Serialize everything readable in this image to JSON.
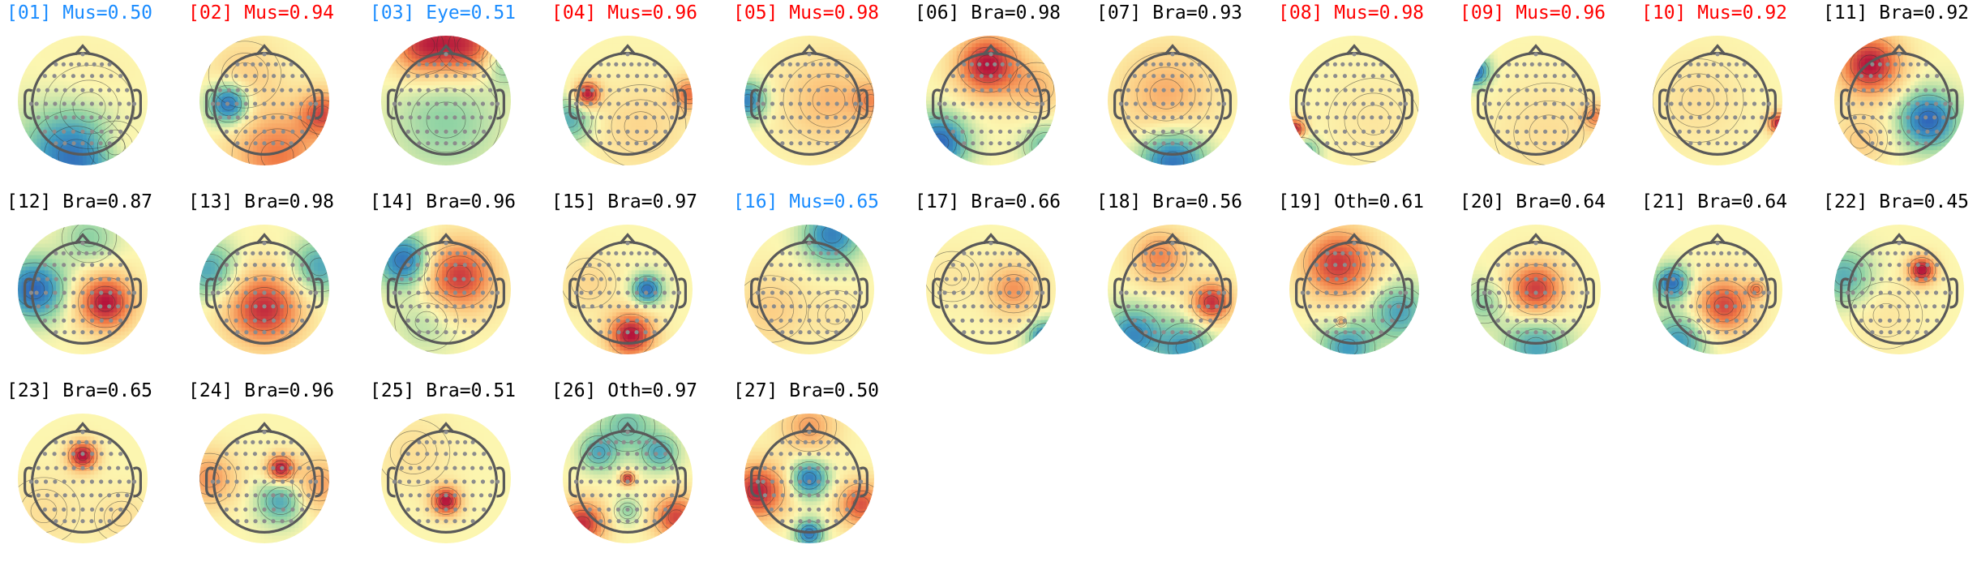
{
  "colors": {
    "Mus": "#ff0000",
    "Eye": "#1a8cff",
    "Bra": "#000000",
    "Oth": "#000000",
    "Mus_low": "#1a8cff",
    "map_red": "#c2143a",
    "map_orange": "#f4874a",
    "map_yellow": "#fcefa6",
    "map_green": "#9ed3a4",
    "map_blue": "#3a6fc2",
    "head_outline": "#555555",
    "sensor": "#8c8c8c"
  },
  "colormap": "spectral (red = positive, blue = negative)",
  "components": [
    {
      "label": "[01] Mus=0.50",
      "cls": "Mus",
      "score": 0.5,
      "title_color": "#1a8cff",
      "blobs": [
        [
          -0.1,
          0.85,
          0.55,
          -0.9
        ],
        [
          0.1,
          0.1,
          0.5,
          0.15
        ],
        [
          0.5,
          0.7,
          0.3,
          0.3
        ]
      ]
    },
    {
      "label": "[02] Mus=0.94",
      "cls": "Mus",
      "score": 0.94,
      "title_color": "#ff0000",
      "blobs": [
        [
          -0.55,
          0.05,
          0.22,
          -0.95
        ],
        [
          0.9,
          0.2,
          0.25,
          0.7
        ],
        [
          0.2,
          0.85,
          0.5,
          0.6
        ],
        [
          -0.3,
          -0.4,
          0.4,
          0.25
        ]
      ]
    },
    {
      "label": "[03] Eye=0.51",
      "cls": "Eye",
      "score": 0.51,
      "title_color": "#1a8cff",
      "blobs": [
        [
          -0.35,
          -0.85,
          0.35,
          0.85
        ],
        [
          0.35,
          -0.85,
          0.35,
          0.8
        ],
        [
          0.9,
          -0.6,
          0.25,
          -0.4
        ],
        [
          0,
          0.3,
          0.6,
          -0.3
        ]
      ]
    },
    {
      "label": "[04] Mus=0.96",
      "cls": "Mus",
      "score": 0.96,
      "title_color": "#ff0000",
      "blobs": [
        [
          -0.62,
          -0.1,
          0.14,
          1.0
        ],
        [
          0.95,
          -0.1,
          0.18,
          0.6
        ],
        [
          -0.9,
          0.3,
          0.25,
          -0.5
        ],
        [
          0.2,
          0.4,
          0.5,
          0.2
        ]
      ]
    },
    {
      "label": "[05] Mus=0.98",
      "cls": "Mus",
      "score": 0.98,
      "title_color": "#ff0000",
      "blobs": [
        [
          -0.95,
          0,
          0.2,
          -0.75
        ],
        [
          0.3,
          0,
          0.5,
          0.35
        ],
        [
          0.95,
          0,
          0.2,
          0.4
        ]
      ]
    },
    {
      "label": "[06] Bra=0.98",
      "cls": "Bra",
      "score": 0.98,
      "title_color": "#000000",
      "blobs": [
        [
          -0.05,
          -0.55,
          0.33,
          1.0
        ],
        [
          -0.8,
          0.65,
          0.3,
          -0.9
        ],
        [
          0.85,
          0.7,
          0.25,
          -0.4
        ],
        [
          0.7,
          -0.2,
          0.3,
          0.35
        ]
      ]
    },
    {
      "label": "[07] Bra=0.93",
      "cls": "Bra",
      "score": 0.93,
      "title_color": "#000000",
      "blobs": [
        [
          0,
          0.95,
          0.35,
          -0.85
        ],
        [
          -0.1,
          -0.1,
          0.5,
          0.4
        ]
      ]
    },
    {
      "label": "[08] Mus=0.98",
      "cls": "Mus",
      "score": 0.98,
      "title_color": "#ff0000",
      "blobs": [
        [
          -0.92,
          0.45,
          0.12,
          1.0
        ],
        [
          -0.8,
          0.8,
          0.18,
          -0.5
        ],
        [
          0.3,
          0.3,
          0.5,
          0.1
        ]
      ]
    },
    {
      "label": "[09] Mus=0.96",
      "cls": "Mus",
      "score": 0.96,
      "title_color": "#ff0000",
      "blobs": [
        [
          -0.95,
          -0.45,
          0.16,
          -0.9
        ],
        [
          0.92,
          0.25,
          0.14,
          0.5
        ],
        [
          0.2,
          0.5,
          0.6,
          0.15
        ]
      ]
    },
    {
      "label": "[10] Mus=0.92",
      "cls": "Mus",
      "score": 0.92,
      "title_color": "#ff0000",
      "blobs": [
        [
          0.95,
          0.35,
          0.12,
          0.95
        ],
        [
          -0.3,
          0,
          0.5,
          0.15
        ]
      ]
    },
    {
      "label": "[11] Bra=0.92",
      "cls": "Bra",
      "score": 0.92,
      "title_color": "#000000",
      "blobs": [
        [
          -0.45,
          -0.55,
          0.33,
          1.0
        ],
        [
          0.45,
          0.3,
          0.3,
          -0.9
        ],
        [
          -0.6,
          0.6,
          0.3,
          0.25
        ]
      ]
    },
    {
      "label": "[12] Bra=0.87",
      "cls": "Bra",
      "score": 0.87,
      "title_color": "#000000",
      "blobs": [
        [
          0.35,
          0.2,
          0.3,
          1.0
        ],
        [
          -0.75,
          0,
          0.32,
          -0.9
        ],
        [
          0.1,
          -0.8,
          0.3,
          -0.3
        ]
      ]
    },
    {
      "label": "[13] Bra=0.98",
      "cls": "Bra",
      "score": 0.98,
      "title_color": "#000000",
      "blobs": [
        [
          0,
          0.3,
          0.4,
          0.9
        ],
        [
          -0.85,
          -0.3,
          0.3,
          -0.55
        ],
        [
          0.85,
          -0.35,
          0.3,
          -0.55
        ]
      ]
    },
    {
      "label": "[14] Bra=0.96",
      "cls": "Bra",
      "score": 0.96,
      "title_color": "#000000",
      "blobs": [
        [
          0.2,
          -0.2,
          0.38,
          0.85
        ],
        [
          -0.65,
          -0.45,
          0.28,
          -0.85
        ],
        [
          -0.3,
          0.5,
          0.35,
          -0.2
        ]
      ]
    },
    {
      "label": "[15] Bra=0.97",
      "cls": "Bra",
      "score": 0.97,
      "title_color": "#000000",
      "blobs": [
        [
          0.05,
          0.7,
          0.25,
          1.0
        ],
        [
          0.3,
          0.0,
          0.16,
          -0.85
        ],
        [
          -0.6,
          -0.1,
          0.3,
          0.2
        ]
      ]
    },
    {
      "label": "[16] Mus=0.65",
      "cls": "Mus",
      "score": 0.65,
      "title_color": "#1a8cff",
      "blobs": [
        [
          0.35,
          -0.85,
          0.3,
          -0.75
        ],
        [
          -0.6,
          0.3,
          0.4,
          0.25
        ],
        [
          0.4,
          0.4,
          0.3,
          0.1
        ]
      ]
    },
    {
      "label": "[17] Bra=0.66",
      "cls": "Bra",
      "score": 0.66,
      "title_color": "#000000",
      "blobs": [
        [
          0.35,
          0.0,
          0.28,
          0.5
        ],
        [
          0.85,
          0.75,
          0.18,
          -0.85
        ],
        [
          -0.6,
          -0.2,
          0.3,
          0.1
        ]
      ]
    },
    {
      "label": "[18] Bra=0.56",
      "cls": "Bra",
      "score": 0.56,
      "title_color": "#000000",
      "blobs": [
        [
          0.6,
          0.2,
          0.22,
          0.9
        ],
        [
          -0.2,
          -0.5,
          0.3,
          0.55
        ],
        [
          -0.6,
          0.7,
          0.3,
          -0.7
        ],
        [
          0.2,
          0.9,
          0.3,
          -0.6
        ]
      ]
    },
    {
      "label": "[19] Oth=0.61",
      "cls": "Oth",
      "score": 0.61,
      "title_color": "#000000",
      "blobs": [
        [
          -0.25,
          -0.4,
          0.38,
          0.85
        ],
        [
          0.7,
          0.35,
          0.3,
          -0.55
        ],
        [
          -0.1,
          0.9,
          0.3,
          -0.6
        ],
        [
          -0.2,
          0.5,
          0.06,
          0.55
        ]
      ]
    },
    {
      "label": "[20] Bra=0.64",
      "cls": "Bra",
      "score": 0.64,
      "title_color": "#000000",
      "blobs": [
        [
          0,
          0,
          0.3,
          0.85
        ],
        [
          0,
          0.9,
          0.35,
          -0.55
        ],
        [
          -0.8,
          0.2,
          0.25,
          -0.3
        ]
      ]
    },
    {
      "label": "[21] Bra=0.64",
      "cls": "Bra",
      "score": 0.64,
      "title_color": "#000000",
      "blobs": [
        [
          0.1,
          0.25,
          0.3,
          0.8
        ],
        [
          -0.7,
          -0.1,
          0.18,
          -0.85
        ],
        [
          0.6,
          0.0,
          0.1,
          0.5
        ],
        [
          -0.6,
          0.8,
          0.3,
          -0.6
        ]
      ]
    },
    {
      "label": "[22] Bra=0.45",
      "cls": "Bra",
      "score": 0.45,
      "title_color": "#000000",
      "blobs": [
        [
          0.35,
          -0.3,
          0.15,
          1.0
        ],
        [
          -0.85,
          -0.2,
          0.3,
          -0.5
        ],
        [
          -0.2,
          0.4,
          0.4,
          0.1
        ]
      ]
    },
    {
      "label": "[23] Bra=0.65",
      "cls": "Bra",
      "score": 0.65,
      "title_color": "#000000",
      "blobs": [
        [
          0,
          -0.35,
          0.16,
          1.0
        ],
        [
          -0.6,
          0.5,
          0.4,
          0.15
        ],
        [
          0.6,
          0.6,
          0.3,
          0.15
        ]
      ]
    },
    {
      "label": "[24] Bra=0.96",
      "cls": "Bra",
      "score": 0.96,
      "title_color": "#000000",
      "blobs": [
        [
          0.25,
          -0.15,
          0.15,
          1.0
        ],
        [
          0.25,
          0.35,
          0.25,
          -0.55
        ],
        [
          -0.85,
          0,
          0.3,
          0.5
        ],
        [
          0.85,
          0.1,
          0.3,
          0.45
        ]
      ]
    },
    {
      "label": "[25] Bra=0.51",
      "cls": "Bra",
      "score": 0.51,
      "title_color": "#000000",
      "blobs": [
        [
          0,
          0.35,
          0.16,
          1.0
        ],
        [
          -0.5,
          -0.4,
          0.4,
          0.15
        ]
      ]
    },
    {
      "label": "[26] Oth=0.97",
      "cls": "Oth",
      "score": 0.97,
      "title_color": "#000000",
      "blobs": [
        [
          -0.7,
          0.7,
          0.25,
          0.9
        ],
        [
          0.75,
          0.6,
          0.25,
          0.8
        ],
        [
          0,
          0.0,
          0.08,
          0.9
        ],
        [
          -0.45,
          -0.4,
          0.2,
          -0.5
        ],
        [
          0.5,
          -0.4,
          0.2,
          -0.5
        ],
        [
          0,
          -0.8,
          0.3,
          -0.4
        ],
        [
          0,
          0.5,
          0.15,
          -0.3
        ]
      ]
    },
    {
      "label": "[27] Bra=0.50",
      "cls": "Bra",
      "score": 0.5,
      "title_color": "#000000",
      "blobs": [
        [
          -0.8,
          0.2,
          0.3,
          0.95
        ],
        [
          0.8,
          0.4,
          0.25,
          0.75
        ],
        [
          0,
          0.0,
          0.2,
          -0.8
        ],
        [
          0,
          0.85,
          0.15,
          -0.8
        ],
        [
          0,
          -0.8,
          0.3,
          0.45
        ]
      ]
    }
  ]
}
